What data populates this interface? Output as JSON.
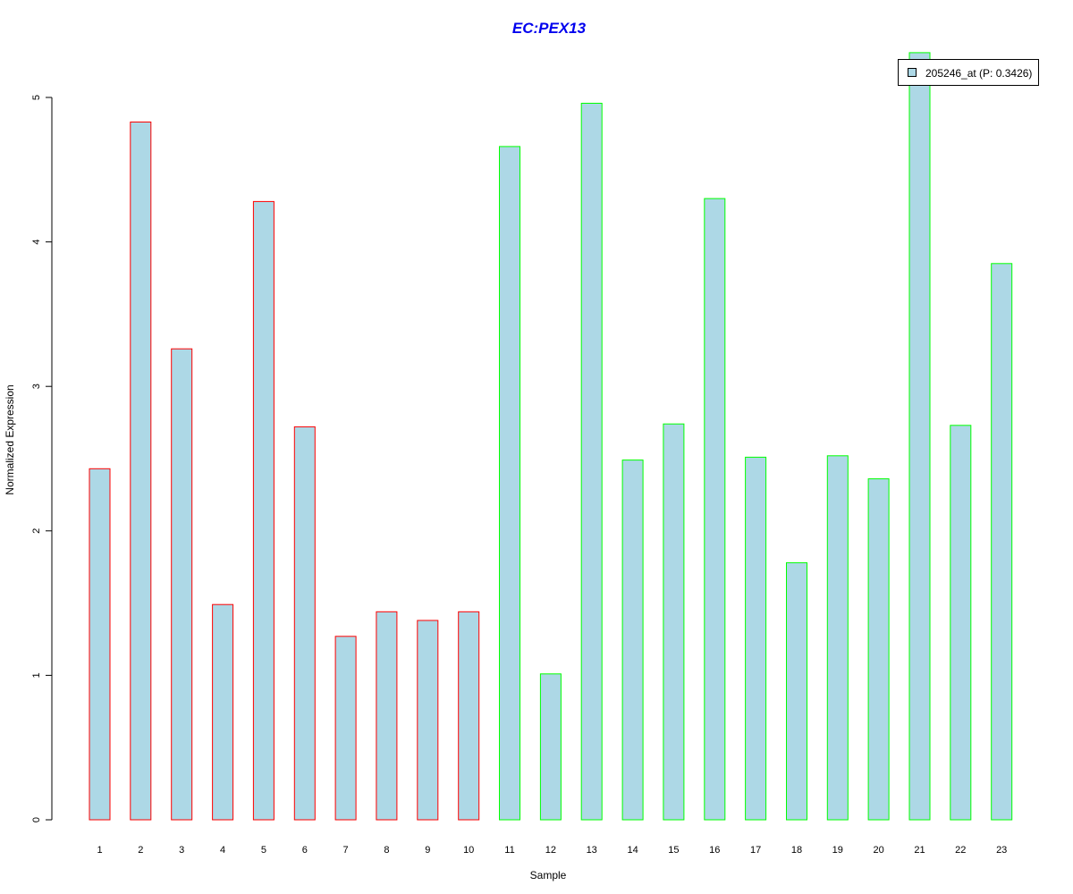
{
  "chart_data": {
    "type": "bar",
    "title": "EC:PEX13",
    "xlabel": "Sample",
    "ylabel": "Normalized Expression",
    "categories": [
      "1",
      "2",
      "3",
      "4",
      "5",
      "6",
      "7",
      "8",
      "9",
      "10",
      "11",
      "12",
      "13",
      "14",
      "15",
      "16",
      "17",
      "18",
      "19",
      "20",
      "21",
      "22",
      "23"
    ],
    "series": [
      {
        "name": "205246_at (P: 0.3426)",
        "values": [
          2.43,
          4.83,
          3.26,
          1.49,
          4.28,
          2.72,
          1.27,
          1.44,
          1.38,
          1.44,
          4.66,
          1.01,
          4.96,
          2.49,
          2.74,
          4.3,
          2.51,
          1.78,
          2.52,
          2.36,
          5.31,
          2.73,
          3.85
        ]
      }
    ],
    "groups": [
      {
        "samples": [
          1,
          10
        ],
        "border_color": "#ff0000"
      },
      {
        "samples": [
          11,
          23
        ],
        "border_color": "#00ff00"
      }
    ],
    "yticks": [
      0,
      1,
      2,
      3,
      4,
      5
    ],
    "ylim": [
      0,
      5.4
    ],
    "bar_fill": "#add8e6",
    "title_color": "#0000ee",
    "legend_position": "top-right",
    "grid": false
  }
}
